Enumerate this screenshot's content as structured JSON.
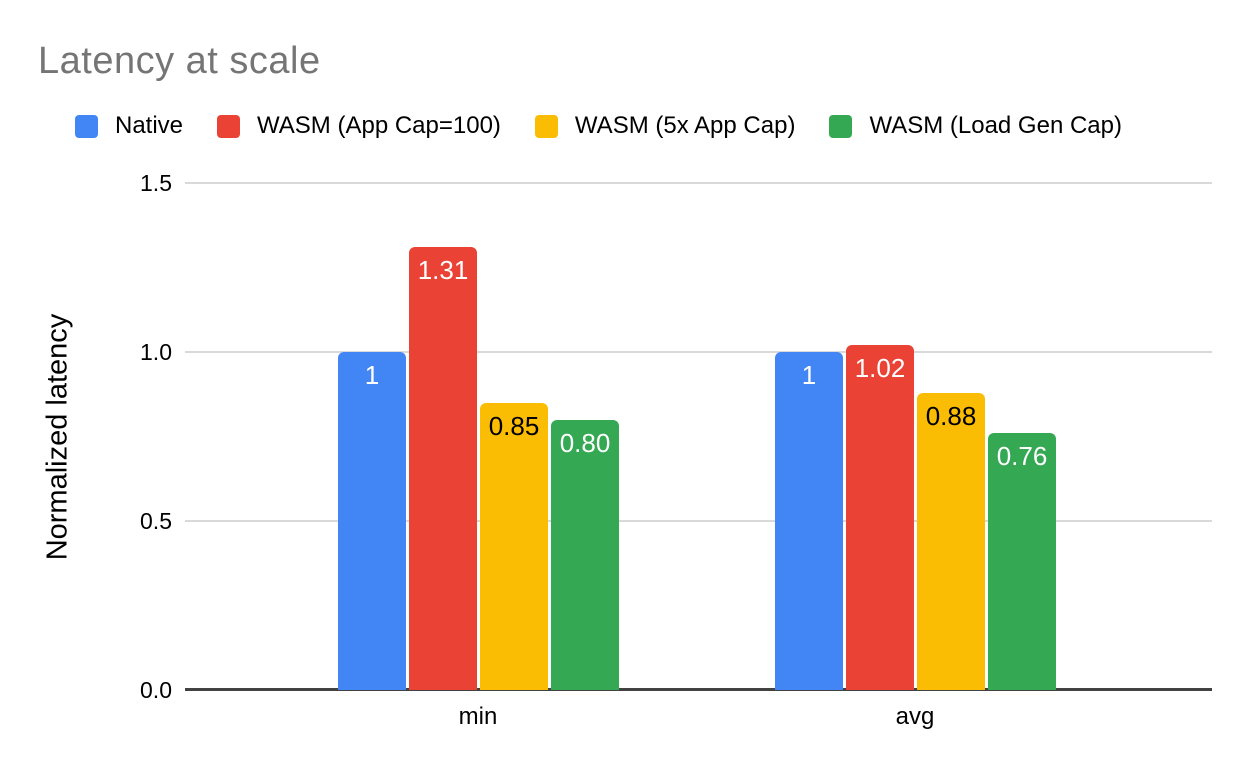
{
  "chart_data": {
    "type": "bar",
    "title": "Latency at scale",
    "ylabel": "Normalized latency",
    "xlabel": "",
    "categories": [
      "min",
      "avg"
    ],
    "series": [
      {
        "name": "Native",
        "color": "#4285F4",
        "label_color": "#ffffff",
        "values": [
          1.0,
          1.0
        ],
        "labels": [
          "1",
          "1"
        ]
      },
      {
        "name": "WASM (App Cap=100)",
        "color": "#EA4335",
        "label_color": "#ffffff",
        "values": [
          1.31,
          1.02
        ],
        "labels": [
          "1.31",
          "1.02"
        ]
      },
      {
        "name": "WASM (5x App Cap)",
        "color": "#FBBC04",
        "label_color": "#000000",
        "values": [
          0.85,
          0.88
        ],
        "labels": [
          "0.85",
          "0.88"
        ]
      },
      {
        "name": "WASM (Load Gen Cap)",
        "color": "#34A853",
        "label_color": "#ffffff",
        "values": [
          0.8,
          0.76
        ],
        "labels": [
          "0.80",
          "0.76"
        ]
      }
    ],
    "y_axis": {
      "ticks": [
        "0.0",
        "0.5",
        "1.0",
        "1.5"
      ],
      "min": 0,
      "max": 1.5
    },
    "grid": true,
    "legend_position": "top",
    "axis_line_color": "#424242",
    "gridline_color": "#d9d9d9",
    "title_color": "#757575"
  }
}
